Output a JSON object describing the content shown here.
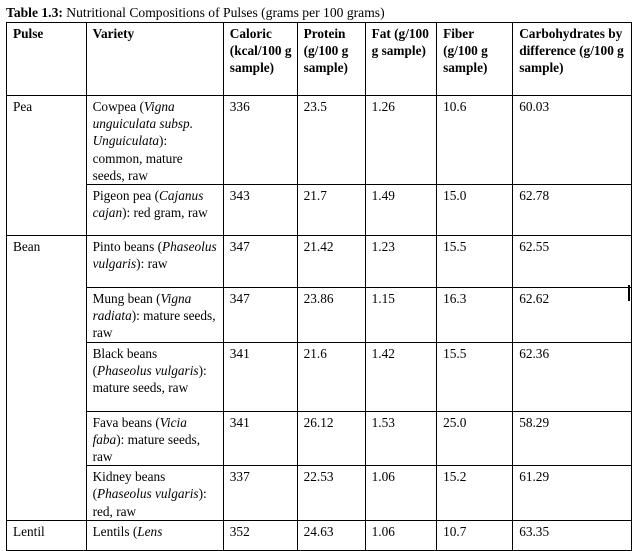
{
  "caption": {
    "label": "Table 1.3:",
    "text": " Nutritional Compositions of Pulses (grams per 100 grams)"
  },
  "headers": [
    "Pulse",
    "Variety",
    "Caloric (kcal/100 g sample)",
    "Protein (g/100 g sample)",
    "Fat (g/100 g sample)",
    "Fiber (g/100 g sample)",
    "Carbohydrates by difference (g/100 g sample)"
  ],
  "rows": [
    {
      "pulse": "Pea",
      "variety": [
        {
          "t": "Cowpea ("
        },
        {
          "t": "Vigna unguiculata subsp. Unguiculata",
          "i": true
        },
        {
          "t": "): common, mature seeds, raw"
        }
      ],
      "caloric": "336",
      "protein": "23.5",
      "fat": "1.26",
      "fiber": "10.6",
      "carbs": "60.03"
    },
    {
      "pulse": "",
      "variety": [
        {
          "t": "Pigeon pea ("
        },
        {
          "t": "Cajanus cajan",
          "i": true
        },
        {
          "t": "): red gram, raw"
        }
      ],
      "caloric": "343",
      "protein": "21.7",
      "fat": "1.49",
      "fiber": "15.0",
      "carbs": "62.78"
    },
    {
      "pulse": "Bean",
      "variety": [
        {
          "t": "Pinto beans ("
        },
        {
          "t": "Phaseolus vulgaris",
          "i": true
        },
        {
          "t": "): raw"
        }
      ],
      "caloric": "347",
      "protein": "21.42",
      "fat": "1.23",
      "fiber": "15.5",
      "carbs": "62.55"
    },
    {
      "pulse": "",
      "variety": [
        {
          "t": "Mung bean ("
        },
        {
          "t": "Vigna radiata",
          "i": true
        },
        {
          "t": "): mature seeds, raw"
        }
      ],
      "caloric": "347",
      "protein": "23.86",
      "fat": "1.15",
      "fiber": "16.3",
      "carbs": "62.62"
    },
    {
      "pulse": "",
      "variety": [
        {
          "t": "Black beans ("
        },
        {
          "t": "Phaseolus vulgaris",
          "i": true
        },
        {
          "t": "): mature seeds, raw"
        }
      ],
      "caloric": "341",
      "protein": "21.6",
      "fat": "1.42",
      "fiber": "15.5",
      "carbs": "62.36"
    },
    {
      "pulse": "",
      "variety": [
        {
          "t": "Fava beans ("
        },
        {
          "t": "Vicia faba",
          "i": true
        },
        {
          "t": "): mature seeds, raw"
        }
      ],
      "caloric": "341",
      "protein": "26.12",
      "fat": "1.53",
      "fiber": "25.0",
      "carbs": "58.29"
    },
    {
      "pulse": "",
      "variety": [
        {
          "t": "Kidney beans ("
        },
        {
          "t": "Phaseolus vulgaris",
          "i": true
        },
        {
          "t": "): red, raw"
        }
      ],
      "caloric": "337",
      "protein": "22.53",
      "fat": "1.06",
      "fiber": "15.2",
      "carbs": "61.29"
    },
    {
      "pulse": "Lentil",
      "variety": [
        {
          "t": "Lentils ("
        },
        {
          "t": "Lens",
          "i": true
        }
      ],
      "caloric": "352",
      "protein": "24.63",
      "fat": "1.06",
      "fiber": "10.7",
      "carbs": "63.35"
    }
  ]
}
